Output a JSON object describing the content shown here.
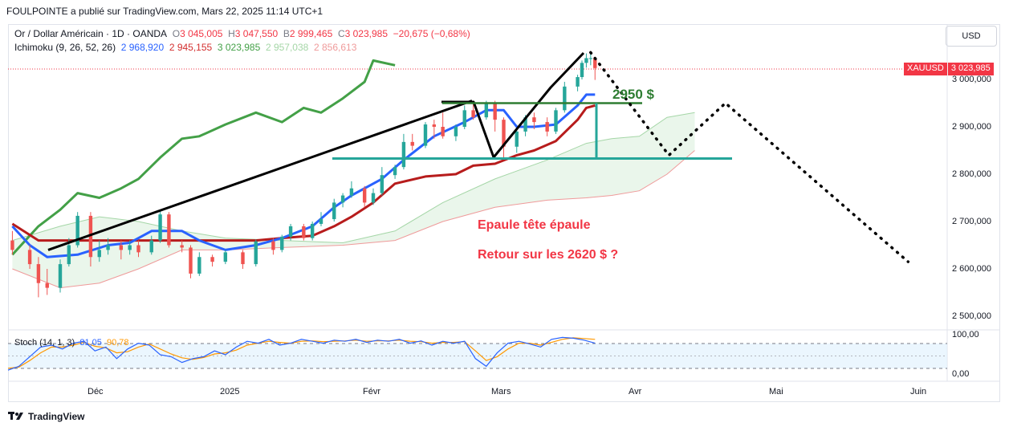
{
  "header": {
    "text": "FOULPOINTE a publié sur TradingView.com, Mars 22, 2025 11:14 UTC+1"
  },
  "legend": {
    "symbol": "Or / Dollar Américain · 1D · OANDA",
    "o_label": "O",
    "o_value": "3 045,005",
    "h_label": "H",
    "h_value": "3 047,550",
    "b_label": "B",
    "b_value": "2 999,465",
    "c_label": "C",
    "c_value": "3 023,985",
    "change": "−20,675 (−0,68%)",
    "ichimoku_label": "Ichimoku (9, 26, 52, 26)",
    "ichimoku_values": [
      "2 968,920",
      "2 945,155",
      "3 023,985",
      "2 957,038",
      "2 856,613"
    ],
    "stoch_label": "Stoch (14, 1, 3)",
    "stoch_k": "81,05",
    "stoch_d": "90,78"
  },
  "currency_button": "USD",
  "price_tag": {
    "symbol": "XAUUSD",
    "price": "3 023,985"
  },
  "annotations": {
    "level": "2950 $",
    "pattern": "Epaule tête épaule",
    "target": "Retour sur les 2620 $ ?"
  },
  "brand": "TradingView",
  "colors": {
    "up": "#26a69a",
    "down": "#ef5350",
    "tenkan": "#2962ff",
    "kijun": "#b71c1c",
    "chikou": "#43a047",
    "cloud_green": "#e8f5e9",
    "cloud_red": "#ffebee",
    "stoch_k": "#2962ff",
    "stoch_d": "#ff9800"
  },
  "chart_data": {
    "type": "candlestick",
    "y_ticks": [
      "3 000,000",
      "2 900,000",
      "2 800,000",
      "2 700,000",
      "2 600,000",
      "2 500,000"
    ],
    "y_tick_values": [
      3000,
      2900,
      2800,
      2700,
      2600,
      2500
    ],
    "x_ticks": [
      "Déc",
      "2025",
      "Févr",
      "Mars",
      "Avr",
      "Mai",
      "Juin"
    ],
    "stoch_ticks": [
      "100,00",
      "0,00"
    ],
    "horizontal_levels": [
      2950,
      2833
    ],
    "projection": [
      {
        "date": "2025-03-20",
        "price": 3057
      },
      {
        "date": "2025-04-07",
        "price": 2840
      },
      {
        "date": "2025-04-20",
        "price": 2950
      },
      {
        "date": "2025-06-01",
        "price": 2615
      }
    ],
    "candles": [
      {
        "date": "2024-11-07",
        "o": 2660,
        "c": 2640,
        "h": 2680,
        "l": 2630
      },
      {
        "date": "2024-11-11",
        "o": 2640,
        "c": 2610,
        "h": 2650,
        "l": 2600
      },
      {
        "date": "2024-11-13",
        "o": 2610,
        "c": 2570,
        "h": 2625,
        "l": 2540
      },
      {
        "date": "2024-11-15",
        "o": 2570,
        "c": 2560,
        "h": 2600,
        "l": 2545
      },
      {
        "date": "2024-11-18",
        "o": 2560,
        "c": 2610,
        "h": 2620,
        "l": 2550
      },
      {
        "date": "2024-11-20",
        "o": 2610,
        "c": 2650,
        "h": 2665,
        "l": 2605
      },
      {
        "date": "2024-11-22",
        "o": 2650,
        "c": 2712,
        "h": 2720,
        "l": 2645
      },
      {
        "date": "2024-11-25",
        "o": 2712,
        "c": 2625,
        "h": 2720,
        "l": 2605
      },
      {
        "date": "2024-11-27",
        "o": 2625,
        "c": 2640,
        "h": 2660,
        "l": 2615
      },
      {
        "date": "2024-11-29",
        "o": 2640,
        "c": 2650,
        "h": 2665,
        "l": 2630
      },
      {
        "date": "2024-12-02",
        "o": 2650,
        "c": 2640,
        "h": 2660,
        "l": 2620
      },
      {
        "date": "2024-12-04",
        "o": 2640,
        "c": 2650,
        "h": 2660,
        "l": 2630
      },
      {
        "date": "2024-12-06",
        "o": 2650,
        "c": 2635,
        "h": 2660,
        "l": 2625
      },
      {
        "date": "2024-12-09",
        "o": 2635,
        "c": 2660,
        "h": 2670,
        "l": 2630
      },
      {
        "date": "2024-12-11",
        "o": 2660,
        "c": 2715,
        "h": 2725,
        "l": 2655
      },
      {
        "date": "2024-12-13",
        "o": 2715,
        "c": 2650,
        "h": 2720,
        "l": 2645
      },
      {
        "date": "2024-12-16",
        "o": 2650,
        "c": 2645,
        "h": 2660,
        "l": 2635
      },
      {
        "date": "2024-12-18",
        "o": 2645,
        "c": 2590,
        "h": 2650,
        "l": 2580
      },
      {
        "date": "2024-12-20",
        "o": 2590,
        "c": 2625,
        "h": 2635,
        "l": 2585
      },
      {
        "date": "2024-12-23",
        "o": 2625,
        "c": 2615,
        "h": 2630,
        "l": 2605
      },
      {
        "date": "2024-12-26",
        "o": 2615,
        "c": 2635,
        "h": 2640,
        "l": 2610
      },
      {
        "date": "2024-12-30",
        "o": 2635,
        "c": 2610,
        "h": 2640,
        "l": 2600
      },
      {
        "date": "2025-01-02",
        "o": 2610,
        "c": 2658,
        "h": 2662,
        "l": 2605
      },
      {
        "date": "2025-01-06",
        "o": 2658,
        "c": 2640,
        "h": 2665,
        "l": 2630
      },
      {
        "date": "2025-01-08",
        "o": 2640,
        "c": 2668,
        "h": 2672,
        "l": 2635
      },
      {
        "date": "2025-01-10",
        "o": 2668,
        "c": 2690,
        "h": 2695,
        "l": 2660
      },
      {
        "date": "2025-01-13",
        "o": 2690,
        "c": 2665,
        "h": 2695,
        "l": 2660
      },
      {
        "date": "2025-01-15",
        "o": 2665,
        "c": 2695,
        "h": 2700,
        "l": 2660
      },
      {
        "date": "2025-01-17",
        "o": 2695,
        "c": 2705,
        "h": 2720,
        "l": 2690
      },
      {
        "date": "2025-01-20",
        "o": 2705,
        "c": 2740,
        "h": 2748,
        "l": 2700
      },
      {
        "date": "2025-01-22",
        "o": 2740,
        "c": 2755,
        "h": 2760,
        "l": 2730
      },
      {
        "date": "2025-01-24",
        "o": 2755,
        "c": 2770,
        "h": 2785,
        "l": 2750
      },
      {
        "date": "2025-01-27",
        "o": 2770,
        "c": 2740,
        "h": 2775,
        "l": 2730
      },
      {
        "date": "2025-01-29",
        "o": 2740,
        "c": 2760,
        "h": 2770,
        "l": 2735
      },
      {
        "date": "2025-01-31",
        "o": 2760,
        "c": 2798,
        "h": 2815,
        "l": 2755
      },
      {
        "date": "2025-02-03",
        "o": 2798,
        "c": 2815,
        "h": 2820,
        "l": 2790
      },
      {
        "date": "2025-02-05",
        "o": 2815,
        "c": 2868,
        "h": 2885,
        "l": 2810
      },
      {
        "date": "2025-02-07",
        "o": 2868,
        "c": 2860,
        "h": 2885,
        "l": 2850
      },
      {
        "date": "2025-02-10",
        "o": 2860,
        "c": 2905,
        "h": 2910,
        "l": 2855
      },
      {
        "date": "2025-02-12",
        "o": 2905,
        "c": 2900,
        "h": 2915,
        "l": 2875
      },
      {
        "date": "2025-02-14",
        "o": 2900,
        "c": 2880,
        "h": 2930,
        "l": 2875
      },
      {
        "date": "2025-02-17",
        "o": 2880,
        "c": 2900,
        "h": 2905,
        "l": 2870
      },
      {
        "date": "2025-02-19",
        "o": 2900,
        "c": 2935,
        "h": 2945,
        "l": 2895
      },
      {
        "date": "2025-02-21",
        "o": 2935,
        "c": 2920,
        "h": 2955,
        "l": 2915
      },
      {
        "date": "2025-02-24",
        "o": 2920,
        "c": 2950,
        "h": 2955,
        "l": 2915
      },
      {
        "date": "2025-02-26",
        "o": 2950,
        "c": 2915,
        "h": 2955,
        "l": 2890
      },
      {
        "date": "2025-02-28",
        "o": 2915,
        "c": 2858,
        "h": 2920,
        "l": 2835
      },
      {
        "date": "2025-03-03",
        "o": 2858,
        "c": 2890,
        "h": 2895,
        "l": 2845
      },
      {
        "date": "2025-03-05",
        "o": 2890,
        "c": 2920,
        "h": 2925,
        "l": 2880
      },
      {
        "date": "2025-03-07",
        "o": 2920,
        "c": 2910,
        "h": 2930,
        "l": 2895
      },
      {
        "date": "2025-03-10",
        "o": 2910,
        "c": 2890,
        "h": 2920,
        "l": 2880
      },
      {
        "date": "2025-03-12",
        "o": 2890,
        "c": 2935,
        "h": 2940,
        "l": 2885
      },
      {
        "date": "2025-03-14",
        "o": 2935,
        "c": 2985,
        "h": 2995,
        "l": 2930
      },
      {
        "date": "2025-03-17",
        "o": 2985,
        "c": 3005,
        "h": 3010,
        "l": 2975
      },
      {
        "date": "2025-03-18",
        "o": 3005,
        "c": 3035,
        "h": 3040,
        "l": 3000
      },
      {
        "date": "2025-03-19",
        "o": 3035,
        "c": 3045,
        "h": 3055,
        "l": 3025
      },
      {
        "date": "2025-03-20",
        "o": 3045,
        "c": 3045,
        "h": 3057,
        "l": 3030
      },
      {
        "date": "2025-03-21",
        "o": 3045,
        "c": 3024,
        "h": 3048,
        "l": 2999
      }
    ],
    "tenkan": [
      [
        0,
        2690
      ],
      [
        1,
        2650
      ],
      [
        3,
        2625
      ],
      [
        6,
        2630
      ],
      [
        9,
        2650
      ],
      [
        11,
        2655
      ],
      [
        13,
        2680
      ],
      [
        16,
        2680
      ],
      [
        18,
        2660
      ],
      [
        20,
        2640
      ],
      [
        22,
        2650
      ],
      [
        24,
        2665
      ],
      [
        27,
        2690
      ],
      [
        29,
        2730
      ],
      [
        31,
        2755
      ],
      [
        34,
        2790
      ],
      [
        36,
        2830
      ],
      [
        39,
        2880
      ],
      [
        42,
        2910
      ],
      [
        44,
        2935
      ],
      [
        46,
        2935
      ],
      [
        47,
        2900
      ],
      [
        49,
        2900
      ],
      [
        51,
        2905
      ],
      [
        53,
        2945
      ],
      [
        55,
        2968
      ],
      [
        57,
        2968
      ]
    ],
    "kijun": [
      [
        0,
        2695
      ],
      [
        2,
        2660
      ],
      [
        8,
        2660
      ],
      [
        14,
        2660
      ],
      [
        18,
        2660
      ],
      [
        22,
        2660
      ],
      [
        24,
        2665
      ],
      [
        27,
        2670
      ],
      [
        29,
        2690
      ],
      [
        31,
        2710
      ],
      [
        33,
        2740
      ],
      [
        35,
        2780
      ],
      [
        38,
        2795
      ],
      [
        41,
        2800
      ],
      [
        43,
        2818
      ],
      [
        45,
        2822
      ],
      [
        47,
        2840
      ],
      [
        49,
        2850
      ],
      [
        51,
        2870
      ],
      [
        53,
        2915
      ],
      [
        55,
        2940
      ],
      [
        57,
        2945
      ]
    ],
    "chikou": [
      [
        0,
        2630
      ],
      [
        2,
        2690
      ],
      [
        4,
        2725
      ],
      [
        6,
        2760
      ],
      [
        8,
        2750
      ],
      [
        10,
        2770
      ],
      [
        12,
        2790
      ],
      [
        14,
        2835
      ],
      [
        16,
        2875
      ],
      [
        18,
        2880
      ],
      [
        20,
        2905
      ],
      [
        22,
        2930
      ],
      [
        24,
        2910
      ],
      [
        26,
        2940
      ],
      [
        28,
        2930
      ],
      [
        30,
        2960
      ],
      [
        32,
        2995
      ],
      [
        33,
        3040
      ],
      [
        35,
        3030
      ]
    ],
    "cloud_a": [
      [
        0,
        2660
      ],
      [
        4,
        2690
      ],
      [
        8,
        2710
      ],
      [
        12,
        2700
      ],
      [
        16,
        2680
      ],
      [
        20,
        2665
      ],
      [
        24,
        2660
      ],
      [
        30,
        2655
      ],
      [
        35,
        2680
      ],
      [
        40,
        2740
      ],
      [
        45,
        2790
      ],
      [
        50,
        2830
      ],
      [
        55,
        2865
      ],
      [
        60,
        2875
      ],
      [
        65,
        2880
      ],
      [
        70,
        2920
      ],
      [
        75,
        2930
      ]
    ],
    "cloud_b": [
      [
        0,
        2600
      ],
      [
        4,
        2560
      ],
      [
        8,
        2570
      ],
      [
        12,
        2600
      ],
      [
        16,
        2640
      ],
      [
        20,
        2640
      ],
      [
        24,
        2645
      ],
      [
        30,
        2650
      ],
      [
        35,
        2660
      ],
      [
        40,
        2700
      ],
      [
        45,
        2730
      ],
      [
        50,
        2745
      ],
      [
        55,
        2750
      ],
      [
        60,
        2755
      ],
      [
        65,
        2765
      ],
      [
        70,
        2800
      ],
      [
        75,
        2850
      ]
    ],
    "stoch_k_series": [
      10,
      20,
      45,
      70,
      75,
      65,
      80,
      85,
      60,
      70,
      40,
      65,
      80,
      75,
      50,
      45,
      30,
      40,
      45,
      60,
      50,
      70,
      85,
      80,
      90,
      75,
      80,
      90,
      85,
      80,
      88,
      85,
      90,
      82,
      88,
      85,
      90,
      80,
      86,
      75,
      85,
      80,
      85,
      40,
      20,
      55,
      80,
      85,
      78,
      70,
      90,
      95,
      93,
      88,
      80
    ],
    "stoch_d_series": [
      15,
      18,
      35,
      55,
      70,
      70,
      75,
      82,
      72,
      68,
      55,
      58,
      70,
      78,
      65,
      52,
      42,
      38,
      43,
      52,
      55,
      62,
      75,
      80,
      85,
      82,
      80,
      85,
      86,
      84,
      85,
      86,
      88,
      85,
      86,
      86,
      88,
      85,
      84,
      80,
      82,
      82,
      84,
      60,
      35,
      45,
      65,
      80,
      80,
      75,
      82,
      90,
      94,
      92,
      90
    ]
  }
}
